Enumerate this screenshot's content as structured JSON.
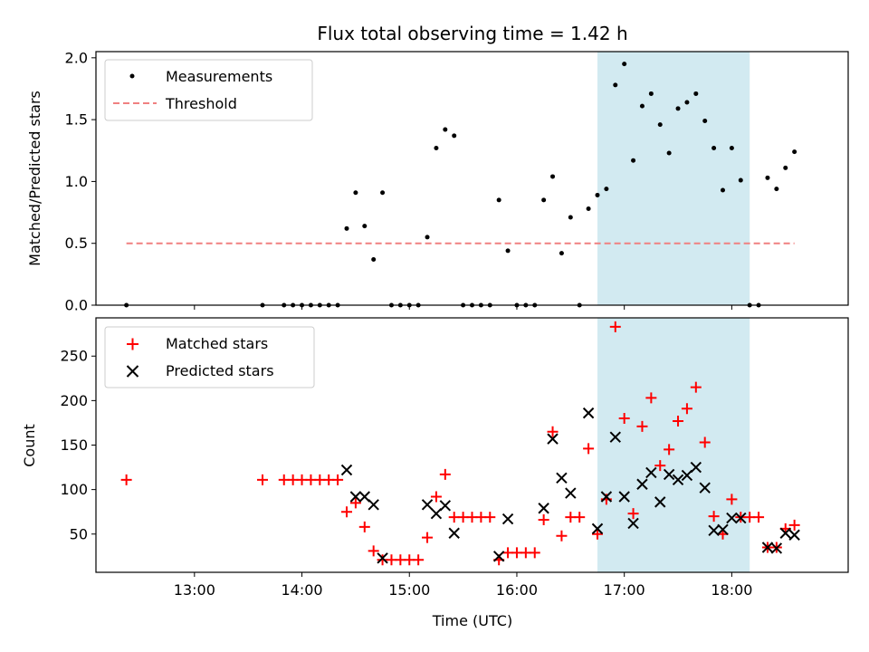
{
  "chart_data": [
    {
      "type": "scatter",
      "title": "Flux total observing time = 1.42 h",
      "xlabel": "",
      "ylabel": "Matched/Predicted stars",
      "xlim": [
        "12:05",
        "19:05"
      ],
      "ylim": [
        0,
        2.05
      ],
      "y_ticks": [
        0.0,
        0.5,
        1.0,
        1.5,
        2.0
      ],
      "y_tick_labels": [
        "0.0",
        "0.5",
        "1.0",
        "1.5",
        "2.0"
      ],
      "highlight_span": {
        "x_start": "16:45",
        "x_end": "18:10",
        "color": "#add8e6"
      },
      "legend_position": "upper-left",
      "series": [
        {
          "name": "Measurements",
          "color": "#000000",
          "marker": "dot",
          "points": [
            [
              "12:22",
              0
            ],
            [
              "13:38",
              0
            ],
            [
              "13:50",
              0
            ],
            [
              "13:55",
              0
            ],
            [
              "14:00",
              0
            ],
            [
              "14:05",
              0
            ],
            [
              "14:10",
              0
            ],
            [
              "14:15",
              0
            ],
            [
              "14:20",
              0
            ],
            [
              "14:25",
              0.62
            ],
            [
              "14:30",
              0.91
            ],
            [
              "14:35",
              0.64
            ],
            [
              "14:40",
              0.37
            ],
            [
              "14:45",
              0.91
            ],
            [
              "14:50",
              0
            ],
            [
              "14:55",
              0
            ],
            [
              "15:00",
              0
            ],
            [
              "15:05",
              0
            ],
            [
              "15:10",
              0.55
            ],
            [
              "15:15",
              1.27
            ],
            [
              "15:20",
              1.42
            ],
            [
              "15:25",
              1.37
            ],
            [
              "15:30",
              0
            ],
            [
              "15:35",
              0
            ],
            [
              "15:40",
              0
            ],
            [
              "15:45",
              0
            ],
            [
              "15:50",
              0.85
            ],
            [
              "15:55",
              0.44
            ],
            [
              "16:00",
              0
            ],
            [
              "16:05",
              0
            ],
            [
              "16:10",
              0
            ],
            [
              "16:15",
              0.85
            ],
            [
              "16:20",
              1.04
            ],
            [
              "16:25",
              0.42
            ],
            [
              "16:30",
              0.71
            ],
            [
              "16:35",
              0
            ],
            [
              "16:40",
              0.78
            ],
            [
              "16:45",
              0.89
            ],
            [
              "16:50",
              0.94
            ],
            [
              "16:55",
              1.78
            ],
            [
              "17:00",
              1.95
            ],
            [
              "17:05",
              1.17
            ],
            [
              "17:10",
              1.61
            ],
            [
              "17:15",
              1.71
            ],
            [
              "17:20",
              1.46
            ],
            [
              "17:25",
              1.23
            ],
            [
              "17:30",
              1.59
            ],
            [
              "17:35",
              1.64
            ],
            [
              "17:40",
              1.71
            ],
            [
              "17:45",
              1.49
            ],
            [
              "17:50",
              1.27
            ],
            [
              "17:55",
              0.93
            ],
            [
              "18:00",
              1.27
            ],
            [
              "18:05",
              1.01
            ],
            [
              "18:10",
              0
            ],
            [
              "18:15",
              0
            ],
            [
              "18:20",
              1.03
            ],
            [
              "18:25",
              0.94
            ],
            [
              "18:30",
              1.11
            ],
            [
              "18:35",
              1.24
            ]
          ]
        },
        {
          "name": "Threshold",
          "color": "#f08080",
          "style": "dashed",
          "points": [
            [
              "12:22",
              0.5
            ],
            [
              "18:35",
              0.5
            ]
          ]
        }
      ]
    },
    {
      "type": "scatter",
      "title": "",
      "xlabel": "Time (UTC)",
      "ylabel": "Count",
      "xlim": [
        "12:05",
        "19:05"
      ],
      "ylim": [
        7,
        293
      ],
      "y_ticks": [
        50,
        100,
        150,
        200,
        250
      ],
      "y_tick_labels": [
        "50",
        "100",
        "150",
        "200",
        "250"
      ],
      "x_ticks": [
        "13:00",
        "14:00",
        "15:00",
        "16:00",
        "17:00",
        "18:00"
      ],
      "highlight_span": {
        "x_start": "16:45",
        "x_end": "18:10",
        "color": "#add8e6"
      },
      "legend_position": "upper-left",
      "series": [
        {
          "name": "Matched stars",
          "color": "#ff0000",
          "marker": "plus",
          "points": [
            [
              "12:22",
              111
            ],
            [
              "13:38",
              111
            ],
            [
              "13:50",
              111
            ],
            [
              "13:55",
              111
            ],
            [
              "14:00",
              111
            ],
            [
              "14:05",
              111
            ],
            [
              "14:10",
              111
            ],
            [
              "14:15",
              111
            ],
            [
              "14:20",
              111
            ],
            [
              "14:25",
              75
            ],
            [
              "14:30",
              85
            ],
            [
              "14:35",
              58
            ],
            [
              "14:40",
              31
            ],
            [
              "14:45",
              21
            ],
            [
              "14:50",
              21
            ],
            [
              "14:55",
              21
            ],
            [
              "15:00",
              21
            ],
            [
              "15:05",
              21
            ],
            [
              "15:10",
              46
            ],
            [
              "15:15",
              92
            ],
            [
              "15:20",
              117
            ],
            [
              "15:25",
              69
            ],
            [
              "15:30",
              69
            ],
            [
              "15:35",
              69
            ],
            [
              "15:40",
              69
            ],
            [
              "15:45",
              69
            ],
            [
              "15:50",
              21
            ],
            [
              "15:55",
              29
            ],
            [
              "16:00",
              29
            ],
            [
              "16:05",
              29
            ],
            [
              "16:10",
              29
            ],
            [
              "16:15",
              66
            ],
            [
              "16:20",
              165
            ],
            [
              "16:25",
              48
            ],
            [
              "16:30",
              69
            ],
            [
              "16:35",
              69
            ],
            [
              "16:40",
              146
            ],
            [
              "16:45",
              50
            ],
            [
              "16:50",
              89
            ],
            [
              "16:55",
              283
            ],
            [
              "17:00",
              180
            ],
            [
              "17:05",
              73
            ],
            [
              "17:10",
              171
            ],
            [
              "17:15",
              203
            ],
            [
              "17:20",
              127
            ],
            [
              "17:25",
              145
            ],
            [
              "17:30",
              177
            ],
            [
              "17:35",
              191
            ],
            [
              "17:40",
              215
            ],
            [
              "17:45",
              153
            ],
            [
              "17:50",
              70
            ],
            [
              "17:55",
              50
            ],
            [
              "18:00",
              89
            ],
            [
              "18:05",
              69
            ],
            [
              "18:10",
              69
            ],
            [
              "18:15",
              69
            ],
            [
              "18:20",
              35
            ],
            [
              "18:25",
              35
            ],
            [
              "18:30",
              56
            ],
            [
              "18:35",
              60
            ]
          ]
        },
        {
          "name": "Predicted stars",
          "color": "#000000",
          "marker": "x",
          "points": [
            [
              "14:25",
              122
            ],
            [
              "14:30",
              92
            ],
            [
              "14:35",
              92
            ],
            [
              "14:40",
              83
            ],
            [
              "14:45",
              23
            ],
            [
              "15:10",
              83
            ],
            [
              "15:15",
              73
            ],
            [
              "15:20",
              82
            ],
            [
              "15:25",
              51
            ],
            [
              "15:50",
              25
            ],
            [
              "15:55",
              67
            ],
            [
              "16:15",
              79
            ],
            [
              "16:20",
              157
            ],
            [
              "16:25",
              113
            ],
            [
              "16:30",
              96
            ],
            [
              "16:40",
              186
            ],
            [
              "16:45",
              56
            ],
            [
              "16:50",
              92
            ],
            [
              "16:55",
              159
            ],
            [
              "17:00",
              92
            ],
            [
              "17:05",
              62
            ],
            [
              "17:10",
              106
            ],
            [
              "17:15",
              119
            ],
            [
              "17:20",
              86
            ],
            [
              "17:25",
              117
            ],
            [
              "17:30",
              111
            ],
            [
              "17:35",
              116
            ],
            [
              "17:40",
              125
            ],
            [
              "17:45",
              102
            ],
            [
              "17:50",
              54
            ],
            [
              "17:55",
              55
            ],
            [
              "18:00",
              68
            ],
            [
              "18:05",
              68
            ],
            [
              "18:20",
              35
            ],
            [
              "18:25",
              34
            ],
            [
              "18:30",
              51
            ],
            [
              "18:35",
              49
            ]
          ]
        }
      ]
    }
  ]
}
